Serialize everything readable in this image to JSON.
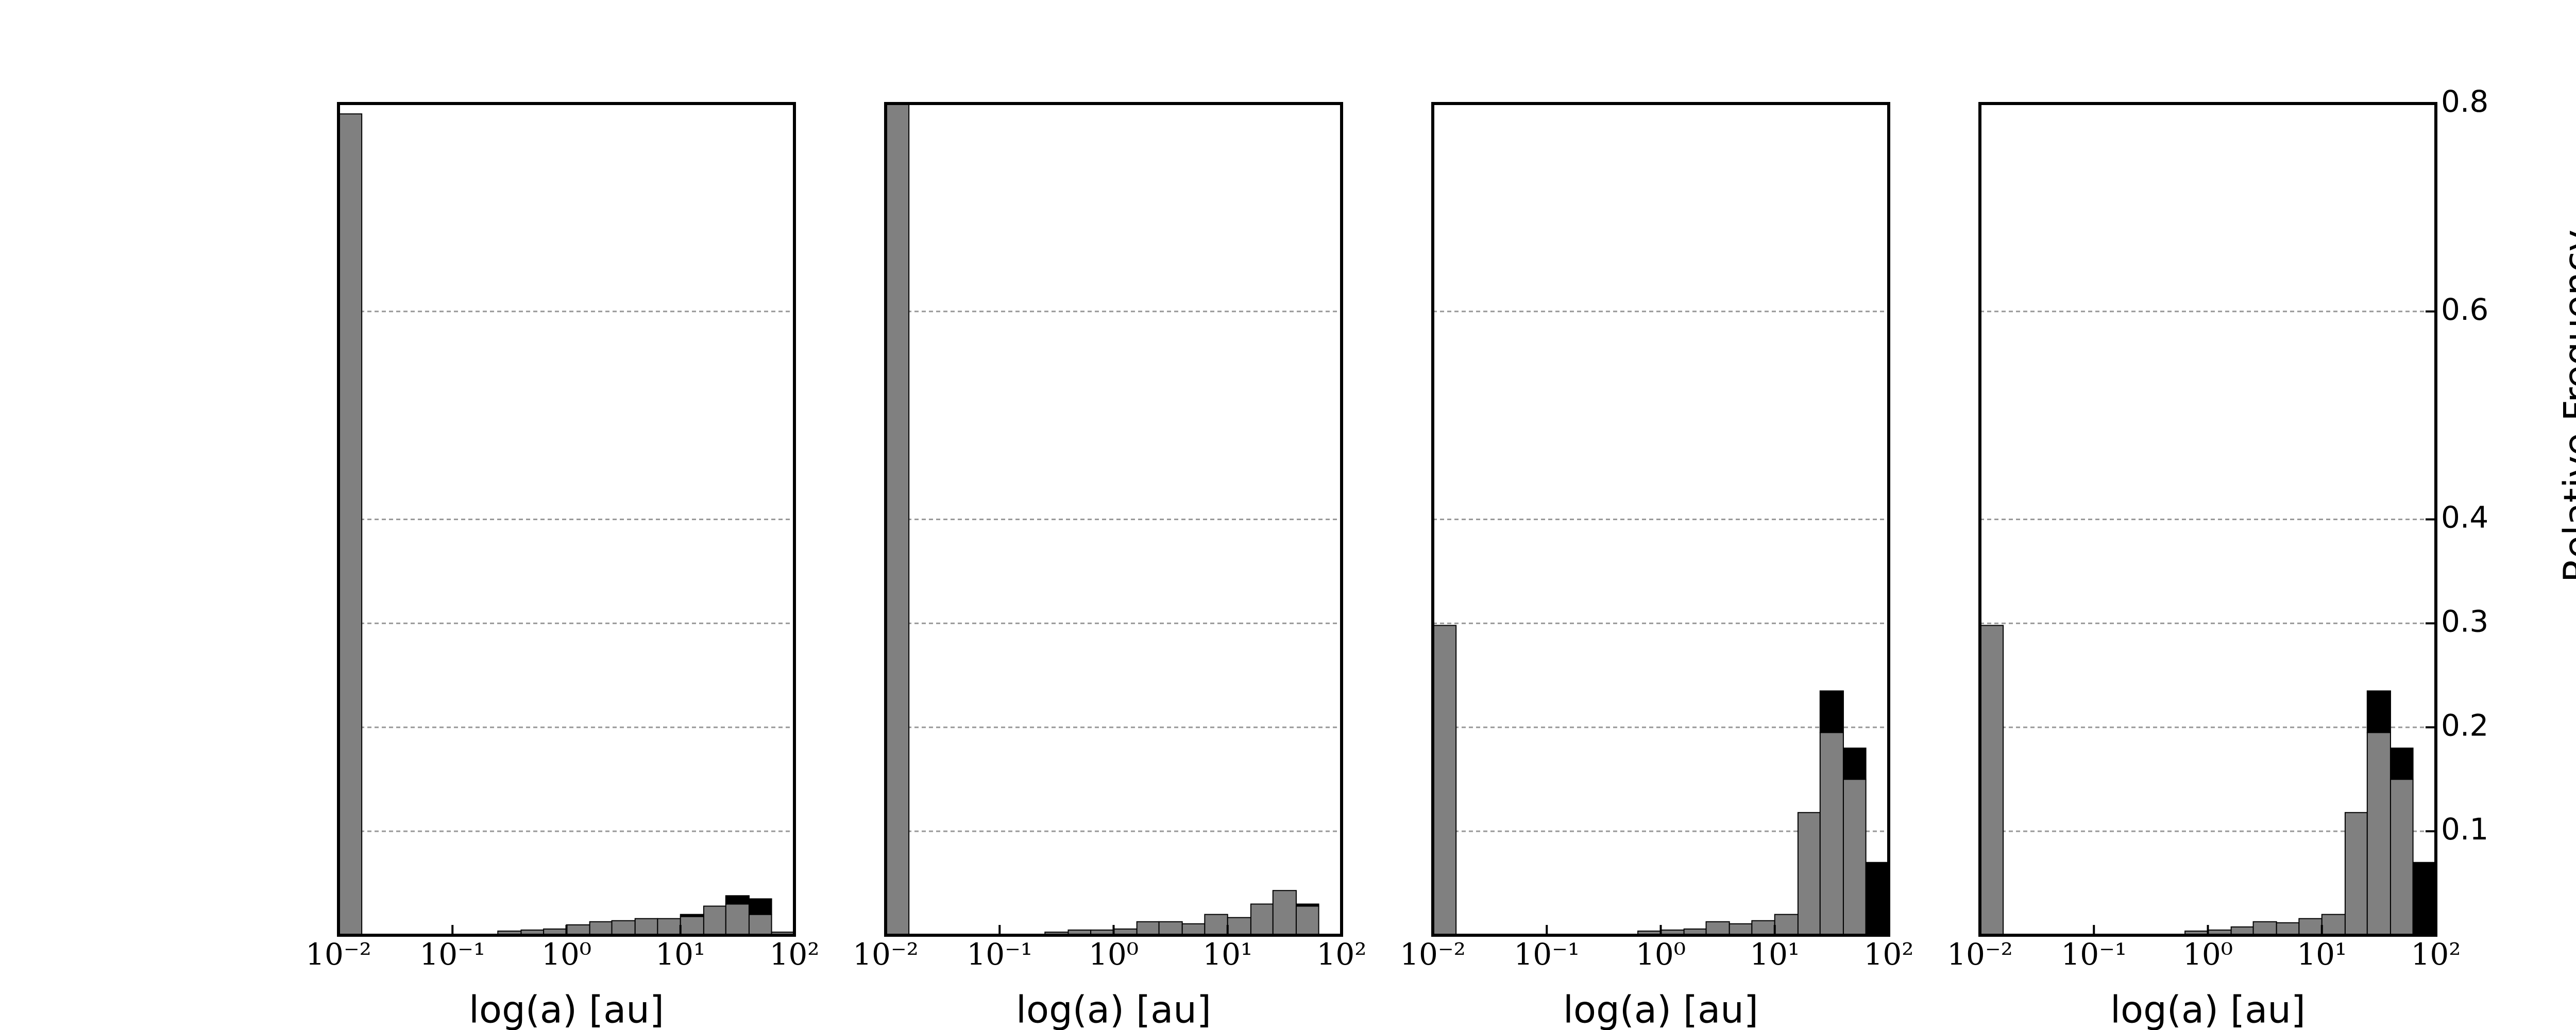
{
  "chart_data": [
    {
      "type": "histogram",
      "x_label": "log(a) [au]",
      "log_x": true,
      "grid": true,
      "bins": [
        0.01,
        0.016,
        0.025,
        0.04,
        0.063,
        0.1,
        0.16,
        0.25,
        0.4,
        0.63,
        1,
        1.6,
        2.5,
        4,
        6.3,
        10,
        16,
        25,
        40,
        63,
        100
      ],
      "xlim": [
        0.01,
        100
      ],
      "xticks": [
        {
          "value": 0.01,
          "label": "10⁻²"
        },
        {
          "value": 0.1,
          "label": "10⁻¹"
        },
        {
          "value": 1,
          "label": "10⁰"
        },
        {
          "value": 10,
          "label": "10¹"
        },
        {
          "value": 100,
          "label": "10²"
        }
      ],
      "ylim": [
        0,
        0.8
      ],
      "yticks": [
        0.1,
        0.2,
        0.3,
        0.4,
        0.6,
        0.8
      ],
      "series": [
        {
          "color": "#808080",
          "values": [
            0.79,
            0,
            0,
            0,
            0,
            0,
            0.001,
            0.004,
            0.005,
            0.006,
            0.01,
            0.013,
            0.014,
            0.016,
            0.016,
            0.018,
            0.028,
            0.03,
            0.02,
            0.003
          ]
        },
        {
          "color": "#000000",
          "values": [
            0,
            0,
            0,
            0,
            0,
            0,
            0,
            0,
            0,
            0,
            0,
            0,
            0,
            0,
            0,
            0.002,
            0,
            0.008,
            0.015,
            0
          ]
        }
      ]
    },
    {
      "type": "histogram",
      "x_label": "log(a) [au]",
      "log_x": true,
      "grid": true,
      "bins": [
        0.01,
        0.016,
        0.025,
        0.04,
        0.063,
        0.1,
        0.16,
        0.25,
        0.4,
        0.63,
        1,
        1.6,
        2.5,
        4,
        6.3,
        10,
        16,
        25,
        40,
        63,
        100
      ],
      "xlim": [
        0.01,
        100
      ],
      "xticks": [
        {
          "value": 0.01,
          "label": "10⁻²"
        },
        {
          "value": 0.1,
          "label": "10⁻¹"
        },
        {
          "value": 1,
          "label": "10⁰"
        },
        {
          "value": 10,
          "label": "10¹"
        },
        {
          "value": 100,
          "label": "10²"
        }
      ],
      "ylim": [
        0,
        0.8
      ],
      "yticks": [
        0.1,
        0.2,
        0.3,
        0.4,
        0.6,
        0.8
      ],
      "series": [
        {
          "color": "#808080",
          "values": [
            0.8,
            0,
            0,
            0,
            0,
            0,
            0,
            0.003,
            0.005,
            0.005,
            0.006,
            0.013,
            0.013,
            0.011,
            0.02,
            0.017,
            0.03,
            0.043,
            0.028,
            0
          ]
        },
        {
          "color": "#000000",
          "values": [
            0,
            0,
            0,
            0,
            0,
            0,
            0,
            0,
            0,
            0,
            0,
            0,
            0,
            0,
            0,
            0,
            0,
            0,
            0.002,
            0
          ]
        }
      ]
    },
    {
      "type": "histogram",
      "x_label": "log(a) [au]",
      "log_x": true,
      "grid": true,
      "bins": [
        0.01,
        0.016,
        0.025,
        0.04,
        0.063,
        0.1,
        0.16,
        0.25,
        0.4,
        0.63,
        1,
        1.6,
        2.5,
        4,
        6.3,
        10,
        16,
        25,
        40,
        63,
        100
      ],
      "xlim": [
        0.01,
        100
      ],
      "xticks": [
        {
          "value": 0.01,
          "label": "10⁻²"
        },
        {
          "value": 0.1,
          "label": "10⁻¹"
        },
        {
          "value": 1,
          "label": "10⁰"
        },
        {
          "value": 10,
          "label": "10¹"
        },
        {
          "value": 100,
          "label": "10²"
        }
      ],
      "ylim": [
        0,
        0.8
      ],
      "yticks": [
        0.1,
        0.2,
        0.3,
        0.4,
        0.6,
        0.8
      ],
      "series": [
        {
          "color": "#808080",
          "values": [
            0.298,
            0,
            0,
            0,
            0,
            0,
            0,
            0,
            0,
            0.004,
            0.005,
            0.006,
            0.013,
            0.011,
            0.014,
            0.02,
            0.118,
            0.195,
            0.15,
            0
          ]
        },
        {
          "color": "#000000",
          "values": [
            0,
            0,
            0,
            0,
            0,
            0,
            0,
            0,
            0,
            0,
            0,
            0,
            0,
            0,
            0,
            0,
            0,
            0.04,
            0.03,
            0.07
          ]
        }
      ]
    },
    {
      "type": "histogram",
      "x_label": "log(a) [au]",
      "y_label": "Relative Frequency",
      "log_x": true,
      "grid": true,
      "bins": [
        0.01,
        0.016,
        0.025,
        0.04,
        0.063,
        0.1,
        0.16,
        0.25,
        0.4,
        0.63,
        1,
        1.6,
        2.5,
        4,
        6.3,
        10,
        16,
        25,
        40,
        63,
        100
      ],
      "xlim": [
        0.01,
        100
      ],
      "xticks": [
        {
          "value": 0.01,
          "label": "10⁻²"
        },
        {
          "value": 0.1,
          "label": "10⁻¹"
        },
        {
          "value": 1,
          "label": "10⁰"
        },
        {
          "value": 10,
          "label": "10¹"
        },
        {
          "value": 100,
          "label": "10²"
        }
      ],
      "ylim": [
        0,
        0.8
      ],
      "yticks": [
        0.1,
        0.2,
        0.3,
        0.4,
        0.6,
        0.8
      ],
      "series": [
        {
          "color": "#808080",
          "values": [
            0.298,
            0,
            0,
            0,
            0,
            0,
            0,
            0,
            0,
            0.004,
            0.005,
            0.008,
            0.013,
            0.012,
            0.016,
            0.02,
            0.118,
            0.195,
            0.15,
            0
          ]
        },
        {
          "color": "#000000",
          "values": [
            0,
            0,
            0,
            0,
            0,
            0,
            0,
            0,
            0,
            0,
            0,
            0,
            0,
            0,
            0,
            0,
            0,
            0.04,
            0.03,
            0.07
          ]
        }
      ]
    }
  ]
}
